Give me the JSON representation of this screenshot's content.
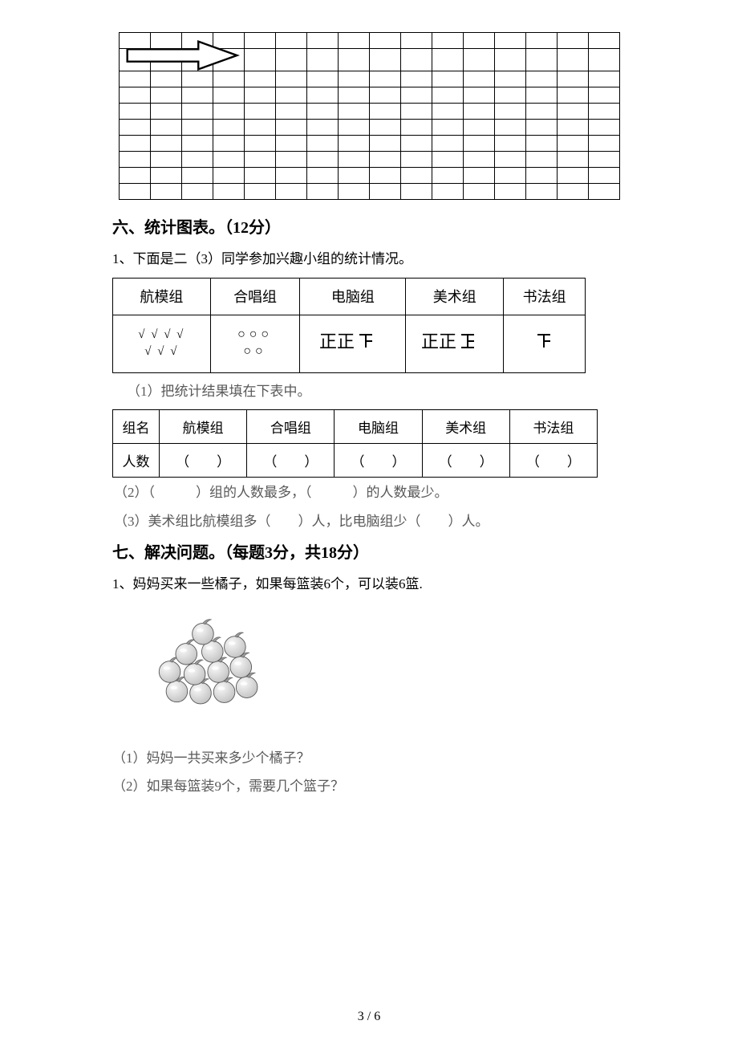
{
  "grid": {
    "cols": 16,
    "rows": 10,
    "tall_row_index": 1
  },
  "section6": {
    "title": "六、统计图表。（12分）",
    "intro": "1、下面是二（3）同学参加兴趣小组的统计情况。",
    "tally": {
      "headers": [
        "航模组",
        "合唱组",
        "电脑组",
        "美术组",
        "书法组"
      ],
      "data_display": [
        "√ √ √ √\n√ √ √",
        "○○○\n○○",
        "正正𬼀",
        "正正𬼀",
        "𬼀"
      ]
    },
    "sub1": "（1）把统计结果填在下表中。",
    "count_table": {
      "row_labels": [
        "组名",
        "人数"
      ],
      "columns": [
        "航模组",
        "合唱组",
        "电脑组",
        "美术组",
        "书法组"
      ],
      "blank": "（　　）"
    },
    "sub2": "（2）（　　　）组的人数最多，（　　　）的人数最少。",
    "sub3": "（3）美术组比航模组多（　　）人，比电脑组少（　　）人。"
  },
  "section7": {
    "title": "七、解决问题。（每题3分，共18分）",
    "q1": "1、妈妈买来一些橘子，如果每篮装6个，可以装6篮.",
    "q1a": "（1）妈妈一共买来多少个橘子？",
    "q1b": "（2）如果每篮装9个，需要几个篮子？"
  },
  "page": "3 / 6",
  "tally_svg": {
    "zheng_full": "正",
    "zheng_partial3": "𬼀",
    "colors": {
      "stroke": "#000000"
    }
  }
}
